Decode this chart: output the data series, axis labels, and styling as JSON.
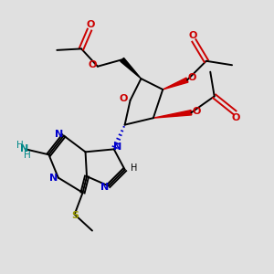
{
  "bg_color": "#e0e0e0",
  "bond_color": "#000000",
  "n_color": "#0000cc",
  "o_color": "#cc0000",
  "s_color": "#999900",
  "nh2_color": "#008888",
  "figsize": [
    3.0,
    3.0
  ],
  "dpi": 100,
  "xlim": [
    0,
    10
  ],
  "ylim": [
    0,
    10
  ]
}
